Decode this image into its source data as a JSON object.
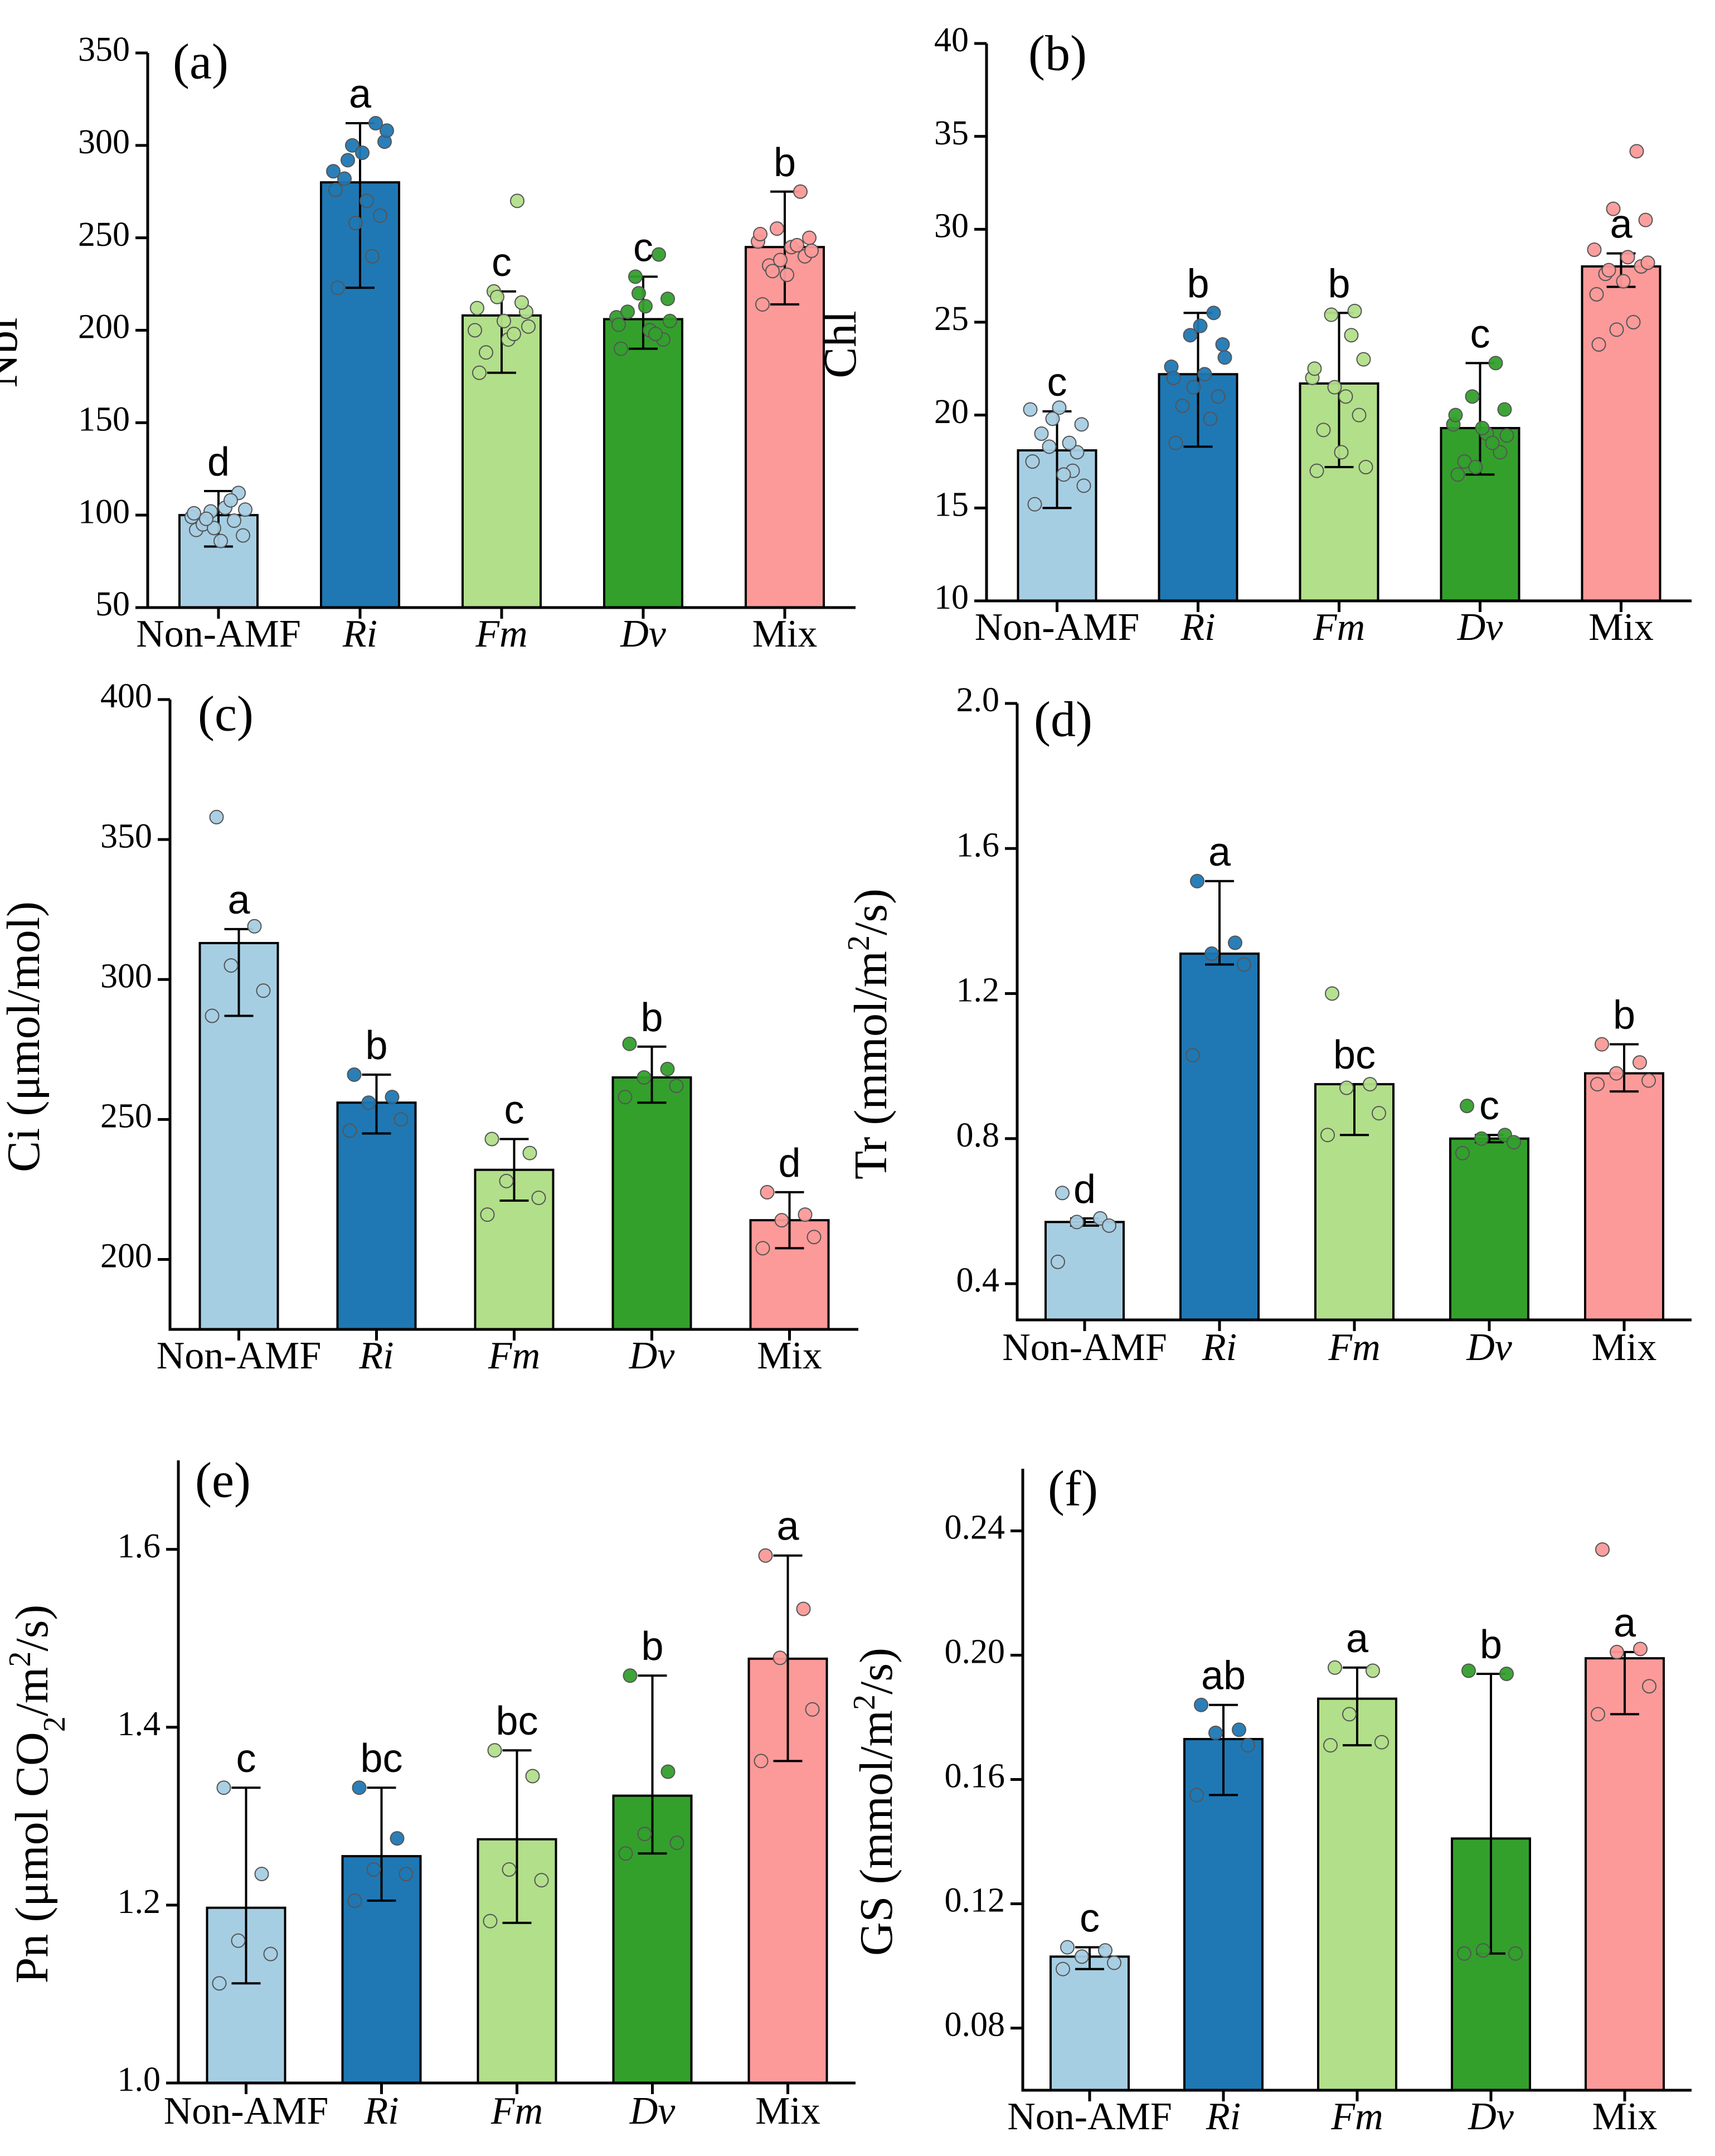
{
  "figure": {
    "categories": [
      "Non-AMF",
      "Ri",
      "Fm",
      "Dv",
      "Mix"
    ],
    "italic_categories": [
      false,
      true,
      true,
      true,
      false
    ],
    "colors": {
      "fills": [
        "#a6cee3",
        "#1f78b4",
        "#b2df8a",
        "#33a02c",
        "#fb9a99"
      ],
      "dots": [
        "#a6cee3",
        "#1f78b4",
        "#b2df8a",
        "#33a02c",
        "#fb9a99"
      ],
      "stroke": "#000000"
    }
  },
  "chart_data": [
    {
      "panel": "(a)",
      "type": "bar",
      "ylabel": "Nbi",
      "ylabel_sub": "",
      "ylabel_sup": "",
      "ylabel_tail": "",
      "ylim": [
        50,
        350
      ],
      "yticks": [
        50,
        100,
        150,
        200,
        250,
        300,
        350
      ],
      "tick_decimals": 0,
      "categories": [
        "Non-AMF",
        "Ri",
        "Fm",
        "Dv",
        "Mix"
      ],
      "values": [
        100,
        280,
        208,
        206,
        245
      ],
      "err_low": [
        83,
        223,
        177,
        190,
        214
      ],
      "err_high": [
        113,
        312,
        221,
        229,
        275
      ],
      "letters": [
        "d",
        "a",
        "c",
        "c",
        "b"
      ],
      "points": [
        [
          92,
          97,
          102,
          89,
          99,
          104,
          112,
          95,
          86,
          101,
          108,
          93,
          103,
          98
        ],
        [
          223,
          312,
          300,
          302,
          286,
          270,
          262,
          282,
          296,
          276,
          240,
          258,
          308,
          292
        ],
        [
          177,
          270,
          221,
          210,
          200,
          195,
          215,
          188,
          205,
          212,
          198,
          218,
          202
        ],
        [
          190,
          241,
          229,
          217,
          207,
          200,
          195,
          210,
          213,
          203,
          198,
          220,
          205
        ],
        [
          214,
          275,
          255,
          250,
          248,
          245,
          240,
          235,
          230,
          252,
          246,
          238,
          243,
          232
        ]
      ]
    },
    {
      "panel": "(b)",
      "type": "bar",
      "ylabel": "Chl",
      "ylabel_sub": "",
      "ylabel_sup": "",
      "ylabel_tail": "",
      "ylim": [
        10,
        40
      ],
      "yticks": [
        10,
        15,
        20,
        25,
        30,
        35,
        40
      ],
      "tick_decimals": 0,
      "categories": [
        "Non-AMF",
        "Ri",
        "Fm",
        "Dv",
        "Mix"
      ],
      "values": [
        18.1,
        22.2,
        21.7,
        19.3,
        28.0
      ],
      "err_low": [
        15.0,
        18.3,
        17.2,
        16.8,
        26.9
      ],
      "err_high": [
        20.2,
        25.5,
        25.5,
        22.8,
        28.7
      ],
      "letters": [
        "c",
        "b",
        "b",
        "c",
        "a"
      ],
      "points": [
        [
          15.2,
          17.0,
          18.3,
          19.5,
          20.3,
          16.8,
          18.0,
          19.0,
          20.4,
          17.5,
          18.5,
          19.8,
          16.2
        ],
        [
          18.5,
          25.5,
          24.3,
          23.8,
          22.6,
          22.2,
          21.0,
          20.5,
          24.8,
          22.0,
          19.8,
          21.5,
          23.1
        ],
        [
          17.0,
          25.6,
          25.4,
          23.0,
          22.0,
          21.0,
          20.0,
          19.2,
          18.0,
          22.5,
          24.3,
          21.5,
          17.2
        ],
        [
          16.8,
          22.8,
          21.0,
          20.3,
          19.5,
          19.0,
          18.0,
          17.5,
          19.3,
          20.0,
          18.5,
          17.2,
          18.9
        ],
        [
          23.8,
          34.2,
          31.1,
          30.5,
          28.9,
          28.5,
          28.0,
          27.6,
          27.2,
          26.5,
          25.0,
          24.6,
          28.2,
          27.8
        ]
      ]
    },
    {
      "panel": "(c)",
      "type": "bar",
      "ylabel": "Ci (μmol/mol)",
      "ylabel_sub": "",
      "ylabel_sup": "",
      "ylabel_tail": "",
      "ylim": [
        175,
        400
      ],
      "yticks": [
        200,
        250,
        300,
        350,
        400
      ],
      "tick_decimals": 0,
      "categories": [
        "Non-AMF",
        "Ri",
        "Fm",
        "Dv",
        "Mix"
      ],
      "values": [
        313,
        256,
        232,
        265,
        214
      ],
      "err_low": [
        287,
        245,
        221,
        256,
        204
      ],
      "err_high": [
        318,
        266,
        243,
        276,
        224
      ],
      "letters": [
        "a",
        "b",
        "c",
        "b",
        "d"
      ],
      "points": [
        [
          358,
          319,
          305,
          296,
          287
        ],
        [
          266,
          258,
          256,
          250,
          246
        ],
        [
          243,
          238,
          228,
          222,
          216
        ],
        [
          277,
          268,
          265,
          262,
          258
        ],
        [
          224,
          216,
          214,
          208,
          204
        ]
      ]
    },
    {
      "panel": "(d)",
      "type": "bar",
      "ylabel": "Tr (mmol/m",
      "ylabel_sub": "",
      "ylabel_sup": "2",
      "ylabel_tail": "/s)",
      "ylim": [
        0.3,
        2.0
      ],
      "yticks": [
        0.4,
        0.8,
        1.2,
        1.6,
        2.0
      ],
      "tick_decimals": 1,
      "categories": [
        "Non-AMF",
        "Ri",
        "Fm",
        "Dv",
        "Mix"
      ],
      "values": [
        0.57,
        1.31,
        0.95,
        0.8,
        0.98
      ],
      "err_low": [
        0.56,
        1.28,
        0.81,
        0.79,
        0.93
      ],
      "err_high": [
        0.58,
        1.51,
        0.95,
        0.81,
        1.06
      ],
      "letters": [
        "d",
        "a",
        "bc",
        "c",
        "b"
      ],
      "points": [
        [
          0.65,
          0.58,
          0.57,
          0.56,
          0.46
        ],
        [
          1.51,
          1.34,
          1.31,
          1.28,
          1.03
        ],
        [
          1.2,
          0.95,
          0.94,
          0.87,
          0.81
        ],
        [
          0.89,
          0.81,
          0.8,
          0.79,
          0.76
        ],
        [
          1.06,
          1.01,
          0.98,
          0.96,
          0.95
        ]
      ]
    },
    {
      "panel": "(e)",
      "type": "bar",
      "ylabel": "Pn (μmol CO",
      "ylabel_sub": "2",
      "ylabel_sup": "2",
      "ylabel_tail": "/s)",
      "ylim": [
        1.0,
        1.7
      ],
      "yticks": [
        1.0,
        1.2,
        1.4,
        1.6
      ],
      "tick_decimals": 1,
      "categories": [
        "Non-AMF",
        "Ri",
        "Fm",
        "Dv",
        "Mix"
      ],
      "values": [
        1.197,
        1.255,
        1.274,
        1.323,
        1.477
      ],
      "err_low": [
        1.112,
        1.205,
        1.18,
        1.258,
        1.362
      ],
      "err_high": [
        1.332,
        1.332,
        1.374,
        1.458,
        1.593
      ],
      "letters": [
        "c",
        "bc",
        "bc",
        "b",
        "a"
      ],
      "points": [
        [
          1.332,
          1.235,
          1.16,
          1.145,
          1.112
        ],
        [
          1.332,
          1.275,
          1.24,
          1.235,
          1.205
        ],
        [
          1.374,
          1.345,
          1.24,
          1.228,
          1.182
        ],
        [
          1.458,
          1.35,
          1.28,
          1.27,
          1.258
        ],
        [
          1.593,
          1.533,
          1.478,
          1.42,
          1.362
        ]
      ]
    },
    {
      "panel": "(f)",
      "type": "bar",
      "ylabel": "GS (mmol/m",
      "ylabel_sub": "",
      "ylabel_sup": "2",
      "ylabel_tail": "/s)",
      "ylim": [
        0.06,
        0.26
      ],
      "yticks": [
        0.08,
        0.12,
        0.16,
        0.2,
        0.24
      ],
      "tick_decimals": 2,
      "categories": [
        "Non-AMF",
        "Ri",
        "Fm",
        "Dv",
        "Mix"
      ],
      "values": [
        0.103,
        0.173,
        0.186,
        0.141,
        0.199
      ],
      "err_low": [
        0.099,
        0.155,
        0.171,
        0.104,
        0.181
      ],
      "err_high": [
        0.106,
        0.184,
        0.196,
        0.194,
        0.201
      ],
      "letters": [
        "c",
        "ab",
        "a",
        "b",
        "a"
      ],
      "points": [
        [
          0.106,
          0.105,
          0.103,
          0.101,
          0.099
        ],
        [
          0.184,
          0.176,
          0.175,
          0.171,
          0.155
        ],
        [
          0.196,
          0.195,
          0.181,
          0.172,
          0.171
        ],
        [
          0.195,
          0.194,
          0.105,
          0.104,
          0.104
        ],
        [
          0.234,
          0.202,
          0.201,
          0.19,
          0.181
        ]
      ]
    }
  ]
}
